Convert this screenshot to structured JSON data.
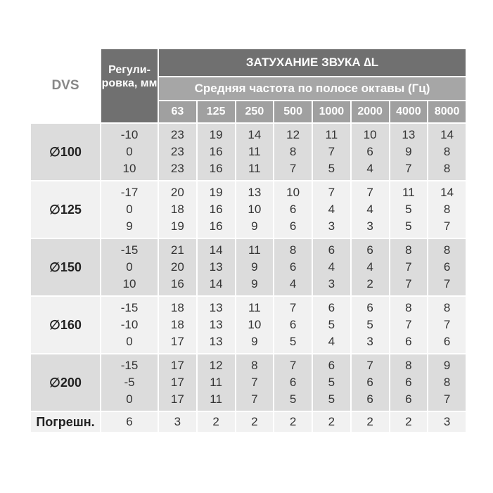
{
  "header": {
    "dvs": "DVS",
    "adjust": "Регули-ровка, мм",
    "title": "ЗАТУХАНИЕ ЗВУКА ∆L",
    "subtitle": "Средняя частота по полосе октавы (Гц)",
    "frequencies": [
      "63",
      "125",
      "250",
      "500",
      "1000",
      "2000",
      "4000",
      "8000"
    ]
  },
  "groups": [
    {
      "label": "∅100",
      "adjust": [
        "-10",
        "0",
        "10"
      ],
      "rows": [
        [
          "23",
          "19",
          "14",
          "12",
          "11",
          "10",
          "13",
          "14"
        ],
        [
          "23",
          "16",
          "11",
          "8",
          "7",
          "6",
          "9",
          "8"
        ],
        [
          "23",
          "16",
          "11",
          "7",
          "5",
          "4",
          "7",
          "8"
        ]
      ]
    },
    {
      "label": "∅125",
      "adjust": [
        "-17",
        "0",
        "9"
      ],
      "rows": [
        [
          "20",
          "19",
          "13",
          "10",
          "7",
          "7",
          "11",
          "14"
        ],
        [
          "18",
          "16",
          "10",
          "6",
          "4",
          "4",
          "5",
          "8"
        ],
        [
          "19",
          "16",
          "9",
          "6",
          "3",
          "3",
          "5",
          "7"
        ]
      ]
    },
    {
      "label": "∅150",
      "adjust": [
        "-15",
        "0",
        "10"
      ],
      "rows": [
        [
          "21",
          "14",
          "11",
          "8",
          "6",
          "6",
          "8",
          "8"
        ],
        [
          "20",
          "13",
          "9",
          "6",
          "4",
          "4",
          "7",
          "6"
        ],
        [
          "16",
          "14",
          "9",
          "4",
          "3",
          "2",
          "7",
          "7"
        ]
      ]
    },
    {
      "label": "∅160",
      "adjust": [
        "-15",
        "-10",
        "0"
      ],
      "rows": [
        [
          "18",
          "13",
          "11",
          "7",
          "6",
          "6",
          "8",
          "8"
        ],
        [
          "18",
          "13",
          "10",
          "6",
          "5",
          "5",
          "7",
          "7"
        ],
        [
          "17",
          "13",
          "9",
          "5",
          "4",
          "3",
          "6",
          "6"
        ]
      ]
    },
    {
      "label": "∅200",
      "adjust": [
        "-15",
        "-5",
        "0"
      ],
      "rows": [
        [
          "17",
          "12",
          "8",
          "7",
          "6",
          "7",
          "8",
          "9"
        ],
        [
          "17",
          "11",
          "7",
          "6",
          "5",
          "6",
          "6",
          "8"
        ],
        [
          "17",
          "11",
          "7",
          "5",
          "5",
          "6",
          "6",
          "7"
        ]
      ]
    }
  ],
  "error": {
    "label": "Погрешн.",
    "adjust": "6",
    "values": [
      "3",
      "2",
      "2",
      "2",
      "2",
      "2",
      "2",
      "3"
    ]
  }
}
